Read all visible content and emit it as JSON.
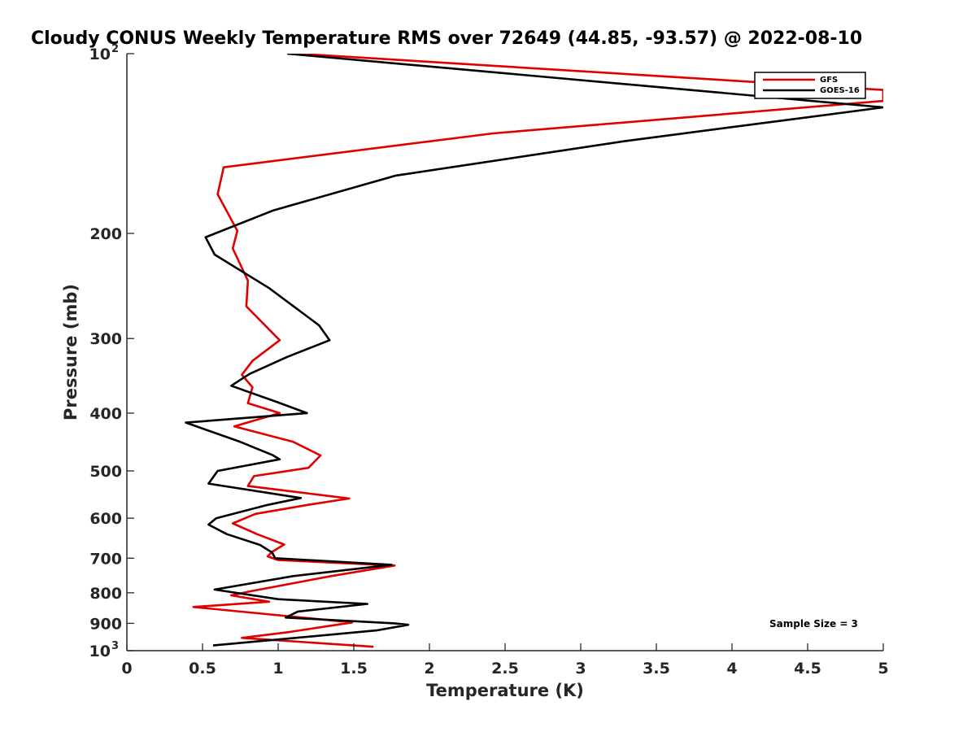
{
  "chart_data": {
    "type": "line",
    "title": "Cloudy CONUS Weekly Temperature RMS over 72649 (44.85, -93.57) @ 2022-08-10",
    "xlabel": "Temperature (K)",
    "ylabel": "Pressure (mb)",
    "xlim": [
      0,
      5
    ],
    "ylim": [
      100,
      1000
    ],
    "y_scale": "log",
    "y_reversed": true,
    "grid": false,
    "legend_position": "top-right",
    "x_ticks": [
      "0",
      "0.5",
      "1",
      "1.5",
      "2",
      "2.5",
      "3",
      "3.5",
      "4",
      "4.5",
      "5"
    ],
    "x_tick_values": [
      0,
      0.5,
      1,
      1.5,
      2,
      2.5,
      3,
      3.5,
      4,
      4.5,
      5
    ],
    "y_ticks": [
      {
        "value": 100,
        "base": "10",
        "exp": "2"
      },
      {
        "value": 200,
        "label": "200"
      },
      {
        "value": 300,
        "label": "300"
      },
      {
        "value": 400,
        "label": "400"
      },
      {
        "value": 500,
        "label": "500"
      },
      {
        "value": 600,
        "label": "600"
      },
      {
        "value": 700,
        "label": "700"
      },
      {
        "value": 800,
        "label": "800"
      },
      {
        "value": 900,
        "label": "900"
      },
      {
        "value": 1000,
        "base": "10",
        "exp": "3"
      }
    ],
    "annotation": "Sample Size = 3",
    "series": [
      {
        "name": "GFS",
        "color": "#e00000",
        "points": [
          [
            1.13,
            100
          ],
          [
            5.0,
            115
          ],
          [
            5.0,
            120
          ],
          [
            2.42,
            136
          ],
          [
            0.64,
            155
          ],
          [
            0.6,
            172
          ],
          [
            0.73,
            198
          ],
          [
            0.7,
            212
          ],
          [
            0.8,
            240
          ],
          [
            0.79,
            265
          ],
          [
            0.93,
            288
          ],
          [
            1.01,
            302
          ],
          [
            0.83,
            327
          ],
          [
            0.76,
            345
          ],
          [
            0.83,
            362
          ],
          [
            0.8,
            385
          ],
          [
            1.01,
            400
          ],
          [
            0.71,
            421
          ],
          [
            1.1,
            447
          ],
          [
            1.28,
            471
          ],
          [
            1.2,
            494
          ],
          [
            0.84,
            510
          ],
          [
            0.8,
            530
          ],
          [
            1.47,
            556
          ],
          [
            1.21,
            569
          ],
          [
            0.85,
            590
          ],
          [
            0.7,
            612
          ],
          [
            0.86,
            638
          ],
          [
            1.04,
            664
          ],
          [
            0.96,
            683
          ],
          [
            0.93,
            695
          ],
          [
            1.0,
            705
          ],
          [
            1.77,
            720
          ],
          [
            1.35,
            750
          ],
          [
            0.82,
            795
          ],
          [
            0.69,
            808
          ],
          [
            0.94,
            828
          ],
          [
            0.44,
            845
          ],
          [
            1.49,
            897
          ],
          [
            1.08,
            930
          ],
          [
            0.76,
            952
          ],
          [
            1.63,
            985
          ]
        ]
      },
      {
        "name": "GOES-16",
        "color": "#000000",
        "points": [
          [
            1.06,
            100
          ],
          [
            5.0,
            123
          ],
          [
            3.3,
            140
          ],
          [
            1.78,
            160
          ],
          [
            0.97,
            183
          ],
          [
            0.52,
            203
          ],
          [
            0.58,
            217
          ],
          [
            0.94,
            247
          ],
          [
            1.27,
            285
          ],
          [
            1.34,
            302
          ],
          [
            1.06,
            322
          ],
          [
            0.81,
            344
          ],
          [
            0.69,
            360
          ],
          [
            0.99,
            383
          ],
          [
            1.19,
            400
          ],
          [
            0.39,
            415
          ],
          [
            0.74,
            446
          ],
          [
            0.96,
            470
          ],
          [
            1.01,
            478
          ],
          [
            0.6,
            500
          ],
          [
            0.54,
            525
          ],
          [
            1.15,
            555
          ],
          [
            0.93,
            570
          ],
          [
            0.59,
            600
          ],
          [
            0.54,
            615
          ],
          [
            0.66,
            638
          ],
          [
            0.88,
            665
          ],
          [
            0.96,
            685
          ],
          [
            0.98,
            700
          ],
          [
            1.75,
            718
          ],
          [
            1.1,
            750
          ],
          [
            0.58,
            790
          ],
          [
            1.0,
            820
          ],
          [
            1.59,
            835
          ],
          [
            1.13,
            860
          ],
          [
            1.05,
            880
          ],
          [
            1.77,
            900
          ],
          [
            1.86,
            905
          ],
          [
            1.65,
            925
          ],
          [
            0.57,
            980
          ]
        ]
      }
    ]
  }
}
